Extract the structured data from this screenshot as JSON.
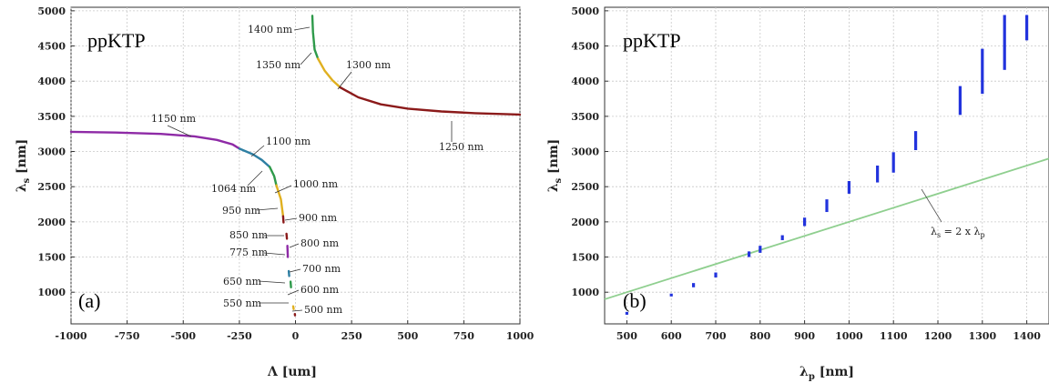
{
  "chart_data": [
    {
      "type": "line",
      "panel_label": "(a)",
      "crystal_label": "ppKTP",
      "xlabel_main": "Λ",
      "xlabel_unit": " [um]",
      "ylabel_main": "λ",
      "ylabel_sub": "s",
      "ylabel_unit": " [nm]",
      "xlim": [
        -1000,
        1000
      ],
      "ylim": [
        550,
        5050
      ],
      "xticks": [
        -1000,
        -750,
        -500,
        -250,
        0,
        250,
        500,
        750,
        1000
      ],
      "yticks": [
        1000,
        1500,
        2000,
        2500,
        3000,
        3500,
        4000,
        4500,
        5000
      ],
      "grid": true,
      "series": [
        {
          "color": "#8e2aa6",
          "x": [
            -1000,
            -800,
            -600,
            -450,
            -350,
            -280,
            -250
          ],
          "y": [
            3280,
            3270,
            3250,
            3215,
            3165,
            3100,
            3040
          ]
        },
        {
          "color": "#2e7fa3",
          "x": [
            -250,
            -190,
            -150,
            -115
          ],
          "y": [
            3040,
            2960,
            2880,
            2780
          ]
        },
        {
          "color": "#2e9a4a",
          "x": [
            -115,
            -95,
            -85
          ],
          "y": [
            2780,
            2650,
            2520
          ]
        },
        {
          "color": "#e0b020",
          "x": [
            -85,
            -65,
            -55
          ],
          "y": [
            2520,
            2320,
            2080
          ]
        },
        {
          "color": "#8b1a1a",
          "x": [
            -55,
            -53
          ],
          "y": [
            2080,
            1990
          ]
        },
        {
          "color": "#8b1a1a",
          "x": [
            -40,
            -38
          ],
          "y": [
            1830,
            1760
          ]
        },
        {
          "color": "#8e2aa6",
          "x": [
            -36,
            -34
          ],
          "y": [
            1660,
            1500
          ]
        },
        {
          "color": "#2e7fa3",
          "x": [
            -30,
            -28
          ],
          "y": [
            1300,
            1230
          ]
        },
        {
          "color": "#2e9a4a",
          "x": [
            -22,
            -20
          ],
          "y": [
            1150,
            1070
          ]
        },
        {
          "color": "#e0b020",
          "x": [
            -10,
            -8
          ],
          "y": [
            800,
            760
          ]
        },
        {
          "color": "#8b1a1a",
          "x": [
            -3,
            -2
          ],
          "y": [
            690,
            670
          ]
        },
        {
          "color": "#2e9a4a",
          "x": [
            75,
            78,
            85,
            100
          ],
          "y": [
            4930,
            4700,
            4450,
            4320
          ]
        },
        {
          "color": "#e0b020",
          "x": [
            100,
            130,
            165,
            200
          ],
          "y": [
            4320,
            4150,
            4010,
            3910
          ]
        },
        {
          "color": "#8b1a1a",
          "x": [
            200,
            280,
            380,
            500,
            650,
            800,
            1000
          ],
          "y": [
            3910,
            3770,
            3670,
            3610,
            3570,
            3545,
            3525
          ]
        }
      ],
      "annotations": [
        "1400 nm",
        "1350 nm",
        "1300 nm",
        "1250 nm",
        "1150 nm",
        "1100 nm",
        "1064 nm",
        "1000 nm",
        "950 nm",
        "900 nm",
        "850 nm",
        "800 nm",
        "775 nm",
        "700 nm",
        "650 nm",
        "600 nm",
        "550 nm",
        "500 nm"
      ]
    },
    {
      "type": "scatter",
      "panel_label": "(b)",
      "crystal_label": "ppKTP",
      "xlabel_main": "λ",
      "xlabel_sub": "p",
      "xlabel_unit": " [nm]",
      "ylabel_main": "λ",
      "ylabel_sub": "s",
      "ylabel_unit": " [nm]",
      "xlim": [
        450,
        1450
      ],
      "ylim": [
        550,
        5050
      ],
      "xticks": [
        500,
        600,
        700,
        800,
        900,
        1000,
        1100,
        1200,
        1300,
        1400
      ],
      "yticks": [
        1000,
        1500,
        2000,
        2500,
        3000,
        3500,
        4000,
        4500,
        5000
      ],
      "grid": true,
      "segments_color": "#2233dd",
      "segments": [
        {
          "x": 500,
          "y0": 680,
          "y1": 720
        },
        {
          "x": 600,
          "y0": 940,
          "y1": 980
        },
        {
          "x": 650,
          "y0": 1070,
          "y1": 1130
        },
        {
          "x": 700,
          "y0": 1210,
          "y1": 1280
        },
        {
          "x": 775,
          "y0": 1500,
          "y1": 1580
        },
        {
          "x": 800,
          "y0": 1560,
          "y1": 1660
        },
        {
          "x": 850,
          "y0": 1740,
          "y1": 1810
        },
        {
          "x": 900,
          "y0": 1940,
          "y1": 2060
        },
        {
          "x": 950,
          "y0": 2140,
          "y1": 2320
        },
        {
          "x": 1000,
          "y0": 2400,
          "y1": 2580
        },
        {
          "x": 1064,
          "y0": 2560,
          "y1": 2800
        },
        {
          "x": 1100,
          "y0": 2700,
          "y1": 2990
        },
        {
          "x": 1150,
          "y0": 3020,
          "y1": 3290
        },
        {
          "x": 1250,
          "y0": 3520,
          "y1": 3930
        },
        {
          "x": 1300,
          "y0": 3820,
          "y1": 4460
        },
        {
          "x": 1350,
          "y0": 4160,
          "y1": 4940
        },
        {
          "x": 1400,
          "y0": 4580,
          "y1": 4940
        }
      ],
      "reference_line": {
        "color": "#8fcf8f",
        "label": "λs = 2 x λp",
        "label_main1": "λ",
        "label_sub1": "s",
        "label_mid": " = 2 x λ",
        "label_sub2": "p"
      }
    }
  ]
}
